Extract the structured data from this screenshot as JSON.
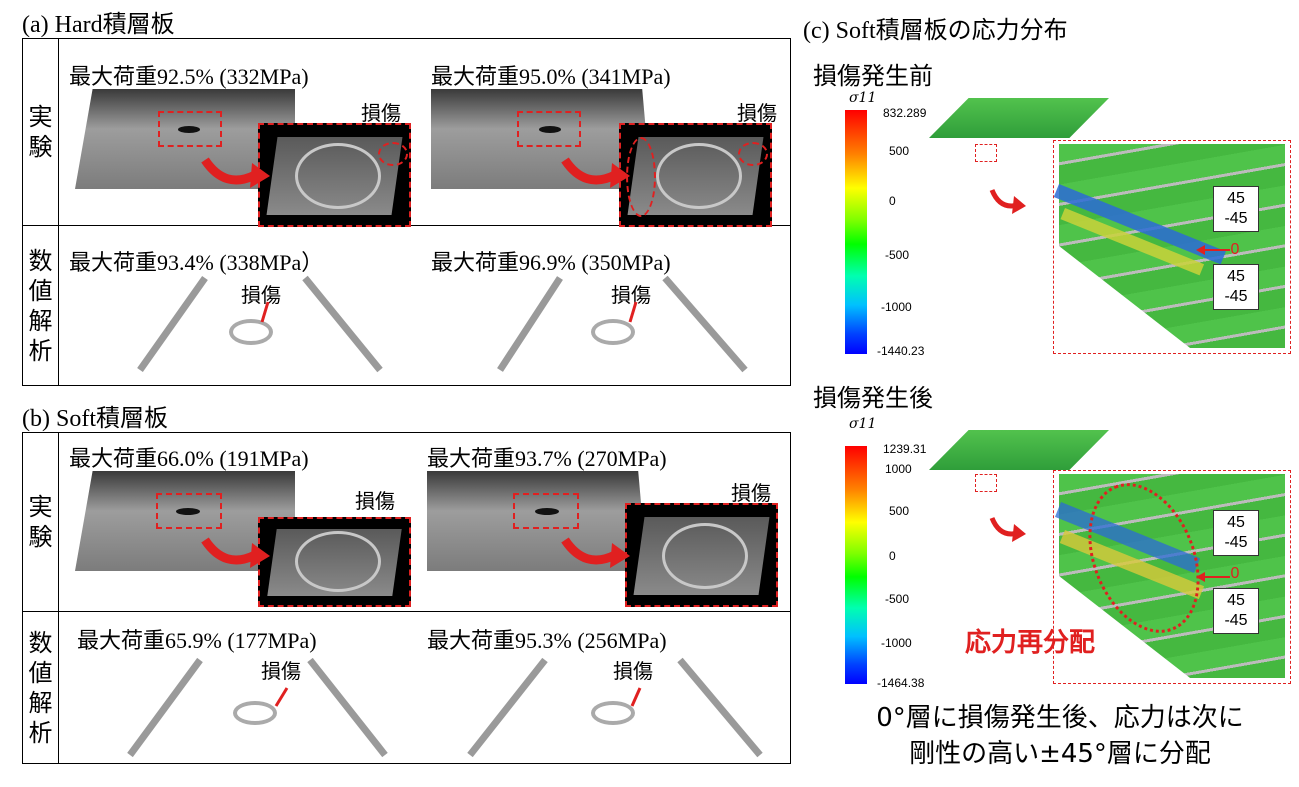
{
  "panel_a": {
    "title_prefix": "(a) Hard",
    "title_jp": "積層板",
    "row_experiment": [
      "実",
      "験"
    ],
    "row_analysis": [
      "数",
      "値",
      "解",
      "析"
    ],
    "exp_left": "最大荷重92.5% (332MPa)",
    "exp_right": "最大荷重95.0% (341MPa)",
    "ana_left": "最大荷重93.4% (338MPa）",
    "ana_right": "最大荷重96.9% (350MPa)",
    "damage": "損傷"
  },
  "panel_b": {
    "title_prefix": "(b) Soft",
    "title_jp": "積層板",
    "row_experiment": [
      "実",
      "験"
    ],
    "row_analysis": [
      "数",
      "値",
      "解",
      "析"
    ],
    "exp_left": "最大荷重66.0% (191MPa)",
    "exp_right": "最大荷重93.7% (270MPa)",
    "ana_left": "最大荷重65.9% (177MPa)",
    "ana_right": "最大荷重95.3% (256MPa)",
    "damage": "損傷"
  },
  "panel_c": {
    "title_prefix": "(c) Soft",
    "title_jp": "積層板の応力分布",
    "before_title": "損傷発生前",
    "after_title": "損傷発生後",
    "sigma_label": "σ11",
    "before_scale": [
      "832.289",
      "500",
      "0",
      "-500",
      "-1000",
      "-1440.23"
    ],
    "after_scale": [
      "1239.31",
      "1000",
      "500",
      "0",
      "-500",
      "-1000",
      "-1464.38"
    ],
    "layers": {
      "top": "45",
      "second": "-45",
      "zero": "0",
      "fourth": "45",
      "fifth": "-45"
    },
    "redistribution": "応力再分配",
    "note_line1": "0°層に損傷発生後、応力は次に",
    "note_line2": "剛性の高い±45°層に分配"
  },
  "colors": {
    "accent_red": "#e02020",
    "plate_green": "#3cb64a"
  }
}
